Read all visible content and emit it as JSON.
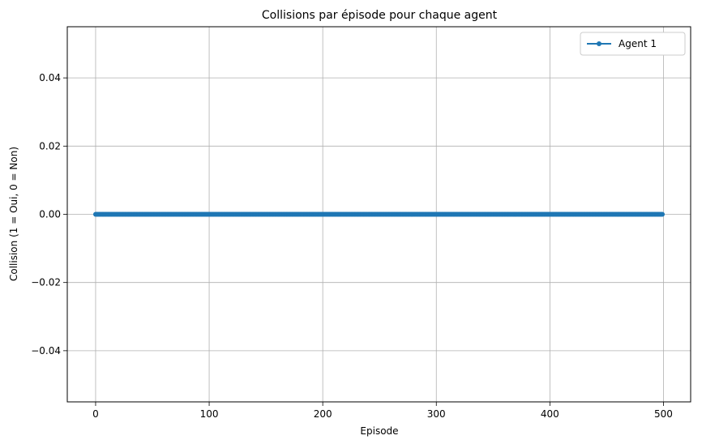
{
  "chart_data": {
    "type": "line",
    "title": "Collisions par épisode pour chaque agent",
    "xlabel": "Episode",
    "ylabel": "Collision (1 = Oui, 0 = Non)",
    "xlim": [
      -24.95,
      523.95
    ],
    "ylim": [
      -0.055,
      0.055
    ],
    "xticks": [
      0,
      100,
      200,
      300,
      400,
      500
    ],
    "yticks": [
      -0.04,
      -0.02,
      0.0,
      0.02,
      0.04
    ],
    "xtick_labels": [
      "0",
      "100",
      "200",
      "300",
      "400",
      "500"
    ],
    "ytick_labels": [
      "−0.04",
      "−0.02",
      "0.00",
      "0.02",
      "0.04"
    ],
    "grid": true,
    "legend_position": "top-right",
    "series": [
      {
        "name": "Agent 1",
        "color": "#1f77b4",
        "marker": "circle",
        "x_range": [
          0,
          499
        ],
        "value": 0
      }
    ]
  }
}
